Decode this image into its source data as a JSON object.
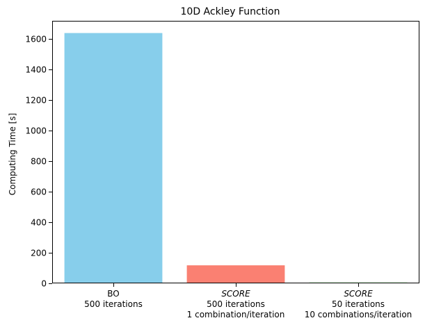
{
  "chart_data": {
    "type": "bar",
    "title": "10D Ackley Function",
    "xlabel": "",
    "ylabel": "Computing Time [s]",
    "ylim": [
      0,
      1720
    ],
    "yticks": [
      0,
      200,
      400,
      600,
      800,
      1000,
      1200,
      1400,
      1600
    ],
    "grid": false,
    "categories": [
      {
        "lines": [
          "BO",
          "500 iterations"
        ],
        "italic_first": false
      },
      {
        "lines": [
          "SCORE",
          "500 iterations",
          "1 combination/iteration"
        ],
        "italic_first": true
      },
      {
        "lines": [
          "SCORE",
          "50 iterations",
          "10 combinations/iteration"
        ],
        "italic_first": true
      }
    ],
    "values": [
      1640,
      118,
      6
    ],
    "colors": [
      "#87ceeb",
      "#fa8072",
      "#90ee90"
    ]
  }
}
